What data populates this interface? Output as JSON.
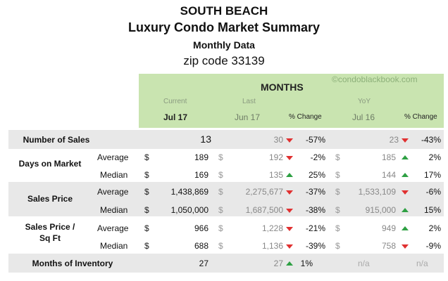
{
  "header": {
    "line1": "SOUTH BEACH",
    "line2": "Luxury Condo Market Summary",
    "line3": "Monthly Data",
    "line4": "zip code 33139"
  },
  "table": {
    "watermark": "©condoblackbook.com",
    "group_title": "MONTHS",
    "sub_current": "Current",
    "sub_last": "Last",
    "sub_yoy": "YoY",
    "col_current": "Jul 17",
    "col_last": "Jun 17",
    "col_pct1": "% Change",
    "col_yoy": "Jul 16",
    "col_pct2": "% Change",
    "rows": {
      "sales": {
        "label": "Number of Sales",
        "cur": "13",
        "last": "30",
        "pct1": "-57%",
        "yoy": "23",
        "pct2": "-43%"
      },
      "dom": {
        "label": "Days on Market",
        "avg": {
          "sub": "Average",
          "cur": "189",
          "last": "192",
          "pct1": "-2%",
          "yoy": "185",
          "pct2": "2%"
        },
        "med": {
          "sub": "Median",
          "cur": "169",
          "last": "135",
          "pct1": "25%",
          "yoy": "144",
          "pct2": "17%"
        }
      },
      "price": {
        "label": "Sales Price",
        "avg": {
          "sub": "Average",
          "cur": "1,438,869",
          "last": "2,275,677",
          "pct1": "-37%",
          "yoy": "1,533,109",
          "pct2": "-6%"
        },
        "med": {
          "sub": "Median",
          "cur": "1,050,000",
          "last": "1,687,500",
          "pct1": "-38%",
          "yoy": "915,000",
          "pct2": "15%"
        }
      },
      "sqft": {
        "label1": "Sales Price /",
        "label2": "Sq Ft",
        "avg": {
          "sub": "Average",
          "cur": "966",
          "last": "1,228",
          "pct1": "-21%",
          "yoy": "949",
          "pct2": "2%"
        },
        "med": {
          "sub": "Median",
          "cur": "688",
          "last": "1,136",
          "pct1": "-39%",
          "yoy": "758",
          "pct2": "-9%"
        }
      },
      "inv": {
        "label": "Months of Inventory",
        "cur": "27",
        "last": "27",
        "pct1": "1%",
        "yoy": "n/a",
        "pct2": "n/a"
      }
    },
    "dollar": "$",
    "colors": {
      "header_green": "#c9e4b0",
      "band_gray": "#e8e8e8",
      "down_red": "#e03030",
      "up_green": "#2ea043"
    }
  }
}
